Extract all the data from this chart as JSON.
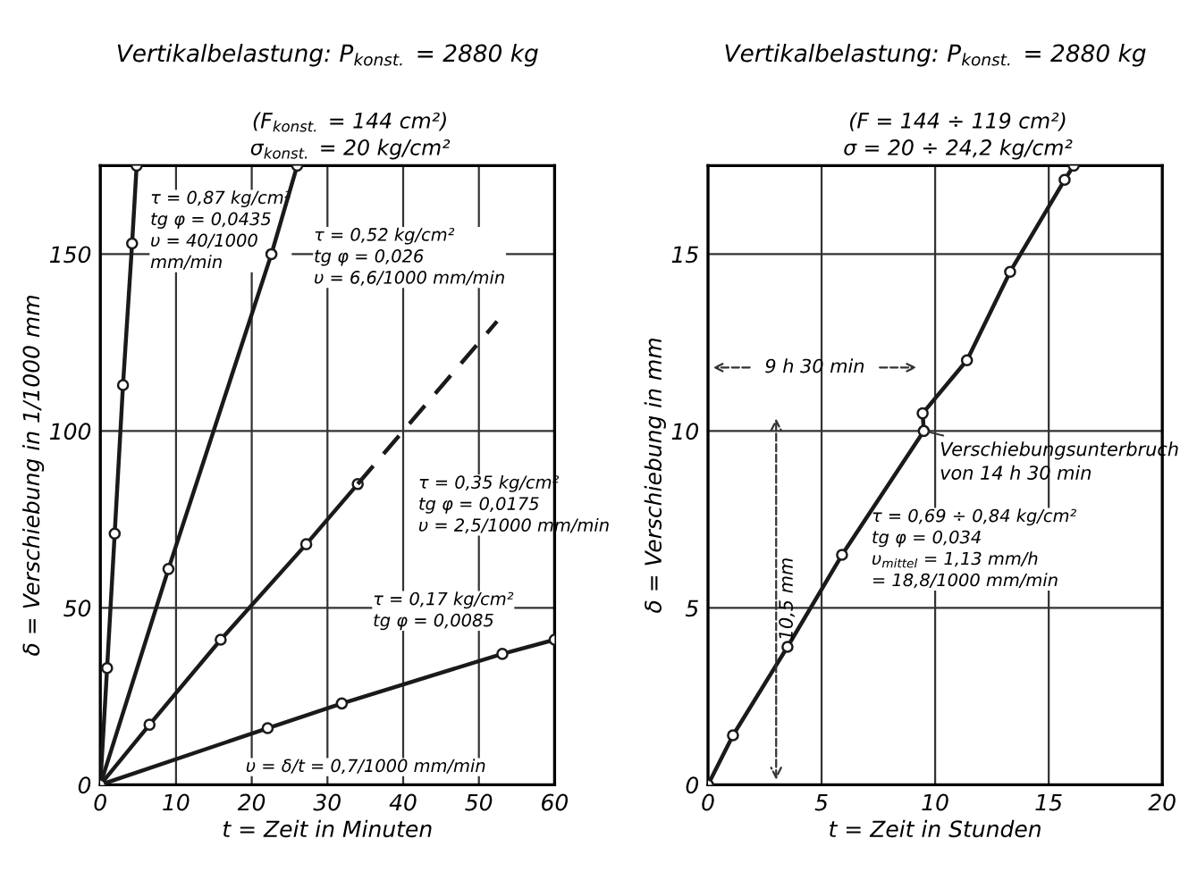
{
  "chart_data": [
    {
      "type": "line",
      "title": "Vertikalbelastung: P$_{konst.}$ = 2880 kg",
      "subtitle": "(F$_{konst.}$ = 144 cm²)\nσ$_{konst.}$ = 20 kg/cm²",
      "xlabel": "t = Zeit in Minuten",
      "ylabel": "δ = Verschiebung in 1/1000 mm",
      "xlim": [
        0,
        60
      ],
      "ylim": [
        0,
        175
      ],
      "xticks": [
        0,
        10,
        20,
        30,
        40,
        50,
        60
      ],
      "yticks": [
        0,
        50,
        100,
        150
      ],
      "grid": true,
      "legend": false,
      "marker": "circle",
      "line_style": "solid",
      "series": [
        {
          "color": "#1a1a1a",
          "x": [
            0,
            0.9,
            1.9,
            3.0,
            4.2,
            4.8
          ],
          "values": [
            0,
            33,
            71,
            113,
            153,
            175
          ]
        },
        {
          "color": "#1a1a1a",
          "x": [
            0,
            9,
            22.6,
            26
          ],
          "values": [
            0,
            61,
            150,
            175
          ]
        },
        {
          "color": "#1a1a1a",
          "x": [
            0,
            6.5,
            15.9,
            27.2,
            34
          ],
          "values": [
            0,
            17,
            41,
            68,
            85
          ]
        },
        {
          "color": "#1a1a1a",
          "x": [
            34,
            52.4
          ],
          "values": [
            85,
            131
          ],
          "line_style": "dashed",
          "marker": "none"
        },
        {
          "color": "#1a1a1a",
          "x": [
            0,
            22.1,
            31.9,
            53.1,
            60
          ],
          "values": [
            0,
            16,
            23,
            37,
            41
          ]
        }
      ],
      "annotations": [
        "τ = 0,87 kg/cm²\ntg φ = 0,0435\nυ = 40/1000\nmm/min",
        "τ = 0,52 kg/cm²\ntg φ = 0,026\nυ = 6,6/1000 mm/min",
        "τ = 0,35 kg/cm²\ntg φ = 0,0175\nυ = 2,5/1000 mm/min",
        "τ = 0,17 kg/cm²\ntg φ = 0,0085",
        "υ = δ/t = 0,7/1000 mm/min"
      ]
    },
    {
      "type": "line",
      "title": "Vertikalbelastung: P$_{konst.}$ = 2880 kg",
      "subtitle": "(F = 144 ÷ 119 cm²)\nσ = 20 ÷ 24,2 kg/cm²",
      "xlabel": "t = Zeit in Stunden",
      "ylabel": "δ = Verschiebung in mm",
      "xlim": [
        0,
        20
      ],
      "ylim": [
        0,
        17.5
      ],
      "xticks": [
        0,
        5,
        10,
        15,
        20
      ],
      "yticks": [
        0,
        5,
        10,
        15
      ],
      "grid": true,
      "legend": false,
      "marker": "circle",
      "line_style": "solid",
      "series": [
        {
          "color": "#1a1a1a",
          "x": [
            0,
            1.1,
            3.5,
            5.9,
            9.5,
            9.45,
            11.4,
            13.3,
            15.7,
            16.1
          ],
          "values": [
            0,
            1.4,
            3.9,
            6.5,
            10.0,
            10.5,
            12.0,
            14.5,
            17.1,
            17.5
          ]
        }
      ],
      "annotations": [
        "9 h 30 min",
        "10,5 mm",
        {
          "text": "Verschiebungsunterbruch\nvon 14 h 30 min",
          "x": 9.5,
          "y": 10.0
        },
        "τ = 0,69 ÷ 0,84 kg/cm²\ntg φ = 0,034\nυ$_{mittel}$ = 1,13 mm/h\n= 18,8/1000 mm/min"
      ]
    }
  ]
}
